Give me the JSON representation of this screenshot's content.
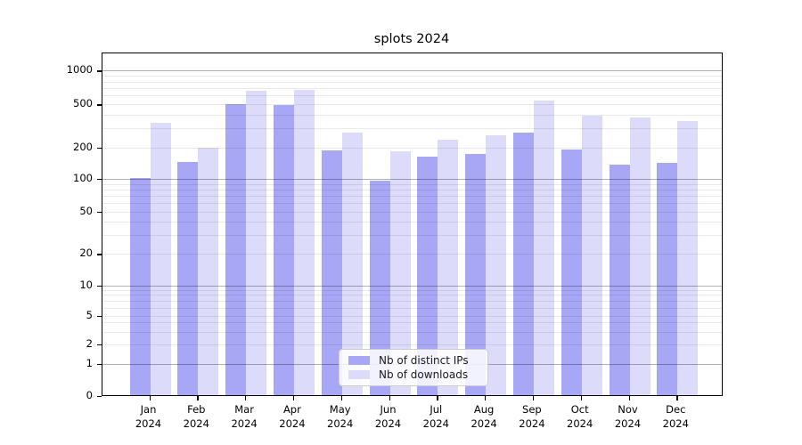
{
  "chart_data": {
    "type": "bar",
    "title": "splots 2024",
    "categories": [
      "Jan",
      "Feb",
      "Mar",
      "Apr",
      "May",
      "Jun",
      "Jul",
      "Aug",
      "Sep",
      "Oct",
      "Nov",
      "Dec"
    ],
    "year_label": "2024",
    "series": [
      {
        "name": "Nb of distinct IPs",
        "color": "#a7a7f5",
        "values": [
          102,
          144,
          500,
          485,
          185,
          96,
          163,
          174,
          273,
          190,
          136,
          142
        ]
      },
      {
        "name": "Nb of downloads",
        "color": "#dcdcfa",
        "values": [
          335,
          197,
          660,
          670,
          275,
          184,
          235,
          258,
          540,
          390,
          375,
          350
        ]
      }
    ],
    "yscale": "symlog",
    "yticks": [
      0,
      1,
      2,
      5,
      10,
      20,
      50,
      100,
      200,
      500,
      1000
    ],
    "ylim": [
      0,
      1400
    ],
    "grid": true,
    "legend_position": "lower center",
    "colors": {
      "grid_minor": "#e9e9e9",
      "grid_major": "#b3b3b3",
      "spine": "#000000"
    }
  }
}
